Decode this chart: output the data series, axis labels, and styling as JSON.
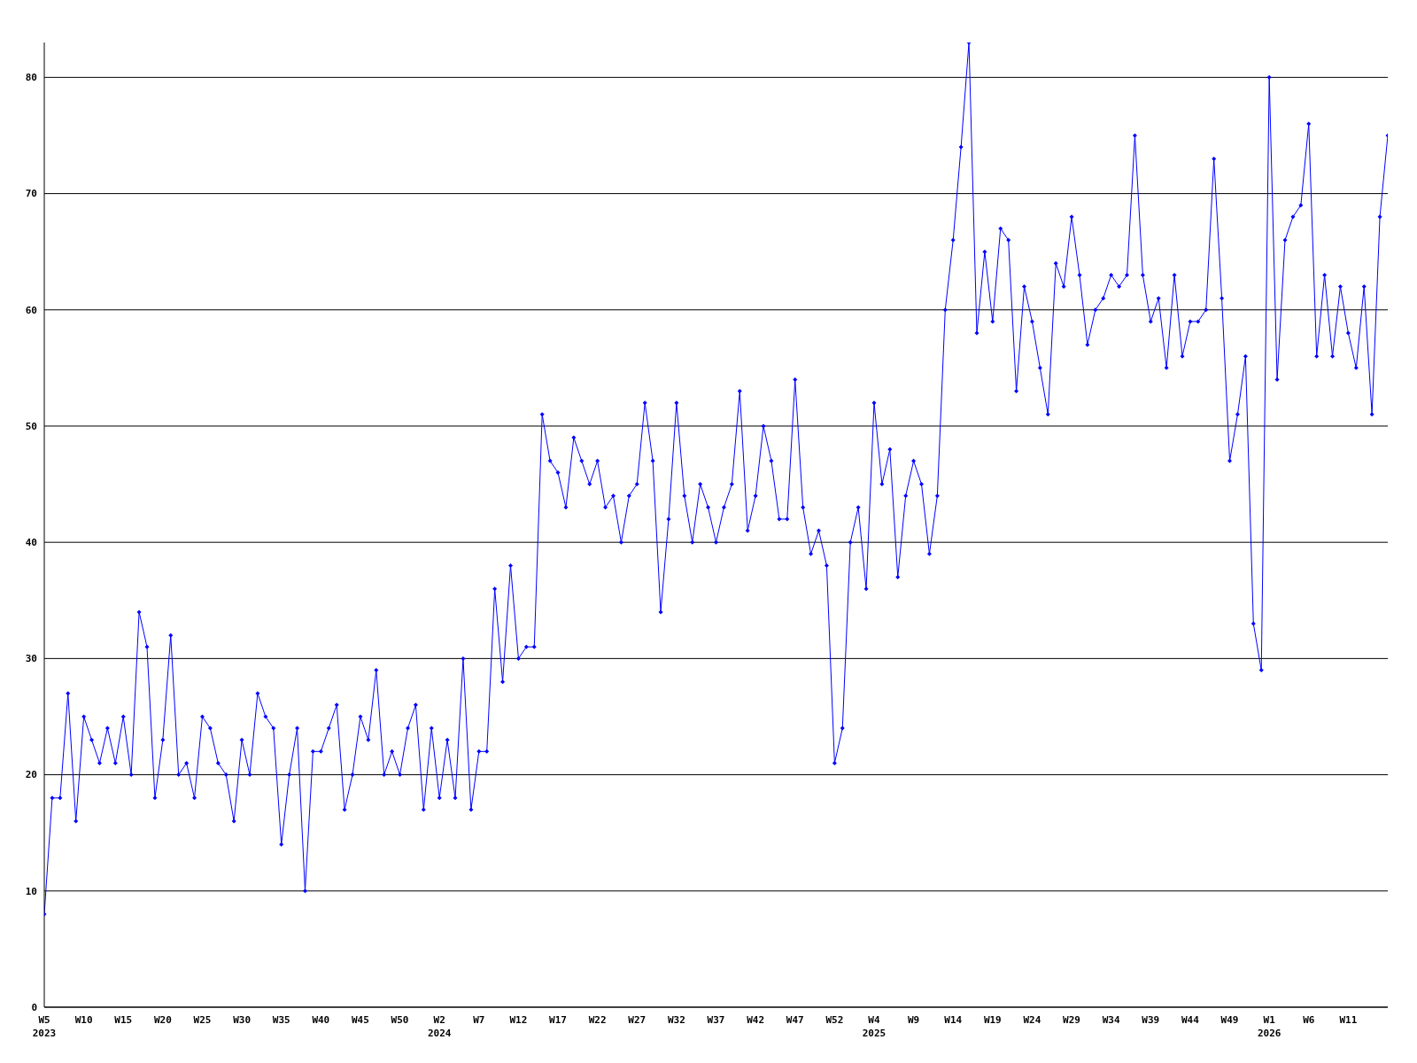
{
  "chart_data": {
    "type": "line",
    "categories": [
      "W5\n2023",
      null,
      null,
      null,
      null,
      "W10",
      null,
      null,
      null,
      null,
      "W15",
      null,
      null,
      null,
      null,
      "W20",
      null,
      null,
      null,
      null,
      "W25",
      null,
      null,
      null,
      null,
      "W30",
      null,
      null,
      null,
      null,
      "W35",
      null,
      null,
      null,
      null,
      "W40",
      null,
      null,
      null,
      null,
      "W45",
      null,
      null,
      null,
      null,
      "W50",
      null,
      null,
      null,
      null,
      "W2\n2024",
      null,
      null,
      null,
      null,
      "W7",
      null,
      null,
      null,
      null,
      "W12",
      null,
      null,
      null,
      null,
      "W17",
      null,
      null,
      null,
      null,
      "W22",
      null,
      null,
      null,
      null,
      "W27",
      null,
      null,
      null,
      null,
      "W32",
      null,
      null,
      null,
      null,
      "W37",
      null,
      null,
      null,
      null,
      "W42",
      null,
      null,
      null,
      null,
      "W47",
      null,
      null,
      null,
      null,
      "W52",
      null,
      null,
      null,
      null,
      "W4\n2025",
      null,
      null,
      null,
      null,
      "W9",
      null,
      null,
      null,
      null,
      "W14",
      null,
      null,
      null,
      null,
      "W19",
      null,
      null,
      null,
      null,
      "W24",
      null,
      null,
      null,
      null,
      "W29",
      null,
      null,
      null,
      null,
      "W34",
      null,
      null,
      null,
      null,
      "W39",
      null,
      null,
      null,
      null,
      "W44",
      null,
      null,
      null,
      null,
      "W49",
      null,
      null,
      null,
      null,
      "W1\n2026",
      null,
      null,
      null,
      null,
      "W6",
      null,
      null,
      null,
      null,
      "W11",
      null,
      null,
      null,
      null,
      null
    ],
    "series": [
      {
        "color": "#0000ff",
        "values": [
          8,
          18,
          18,
          27,
          16,
          25,
          23,
          21,
          24,
          21,
          25,
          20,
          34,
          31,
          18,
          23,
          32,
          20,
          21,
          18,
          25,
          24,
          21,
          20,
          16,
          23,
          20,
          27,
          25,
          24,
          14,
          20,
          24,
          10,
          22,
          22,
          24,
          26,
          17,
          20,
          25,
          23,
          29,
          20,
          22,
          20,
          24,
          26,
          17,
          24,
          18,
          23,
          18,
          30,
          17,
          22,
          22,
          36,
          28,
          38,
          30,
          31,
          31,
          51,
          47,
          46,
          43,
          49,
          47,
          45,
          47,
          43,
          44,
          40,
          44,
          45,
          52,
          47,
          34,
          42,
          52,
          44,
          40,
          45,
          43,
          40,
          43,
          45,
          53,
          41,
          44,
          50,
          47,
          42,
          42,
          54,
          43,
          39,
          41,
          38,
          21,
          24,
          40,
          43,
          36,
          52,
          45,
          48,
          37,
          44,
          47,
          45,
          39,
          44,
          60,
          66,
          74,
          83,
          58,
          65,
          59,
          67,
          66,
          53,
          62,
          59,
          55,
          51,
          64,
          62,
          68,
          63,
          57,
          60,
          61,
          63,
          62,
          63,
          75,
          63,
          59,
          61,
          55,
          63,
          56,
          59,
          59,
          60,
          73,
          61,
          47,
          51,
          56,
          33,
          29,
          80,
          54,
          66,
          68,
          69,
          76,
          56,
          63,
          56,
          62,
          58,
          55,
          62,
          51,
          68,
          75
        ]
      }
    ],
    "ylim": [
      0,
      83
    ],
    "yticks": [
      0,
      10,
      20,
      30,
      40,
      50,
      60,
      70,
      80
    ],
    "grid": "y",
    "marker": "diamond",
    "line_style": "solid"
  }
}
